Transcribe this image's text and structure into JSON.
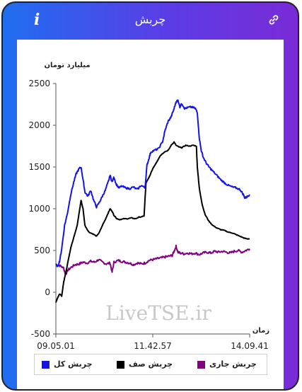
{
  "header": {
    "title": "چربش",
    "info_icon": "i",
    "link_icon": "link-icon"
  },
  "chart_data": {
    "type": "line",
    "ylabel": "میلیارد تومان",
    "xlabel": "زمان",
    "ylim": [
      -500,
      2500
    ],
    "yticks": [
      -500,
      0,
      500,
      1000,
      1500,
      2000,
      2500
    ],
    "xticks": [
      "09.05.01",
      "11.42.57",
      "14.09.41"
    ],
    "x_range": [
      "09.05.01",
      "14.09.41"
    ],
    "grid": false,
    "watermark": "LiveTSE.ir",
    "legend_placement": "bottom",
    "series": [
      {
        "name": "چربش کل",
        "color": "#1414e6",
        "values": [
          [
            0,
            330
          ],
          [
            0.01,
            310
          ],
          [
            0.02,
            380
          ],
          [
            0.03,
            520
          ],
          [
            0.045,
            800
          ],
          [
            0.06,
            950
          ],
          [
            0.075,
            1150
          ],
          [
            0.09,
            1300
          ],
          [
            0.105,
            1420
          ],
          [
            0.12,
            1480
          ],
          [
            0.13,
            1500
          ],
          [
            0.14,
            1350
          ],
          [
            0.15,
            1200
          ],
          [
            0.165,
            1150
          ],
          [
            0.18,
            1220
          ],
          [
            0.195,
            1100
          ],
          [
            0.21,
            1020
          ],
          [
            0.225,
            1080
          ],
          [
            0.24,
            1150
          ],
          [
            0.255,
            1220
          ],
          [
            0.27,
            1320
          ],
          [
            0.28,
            1400
          ],
          [
            0.29,
            1320
          ],
          [
            0.3,
            1380
          ],
          [
            0.31,
            1300
          ],
          [
            0.325,
            1250
          ],
          [
            0.34,
            1270
          ],
          [
            0.36,
            1250
          ],
          [
            0.38,
            1240
          ],
          [
            0.4,
            1260
          ],
          [
            0.42,
            1230
          ],
          [
            0.44,
            1280
          ],
          [
            0.46,
            1250
          ],
          [
            0.47,
            1520
          ],
          [
            0.48,
            1600
          ],
          [
            0.49,
            1680
          ],
          [
            0.51,
            1700
          ],
          [
            0.53,
            1720
          ],
          [
            0.55,
            1800
          ],
          [
            0.565,
            1950
          ],
          [
            0.58,
            2050
          ],
          [
            0.595,
            2100
          ],
          [
            0.61,
            2200
          ],
          [
            0.62,
            2280
          ],
          [
            0.63,
            2300
          ],
          [
            0.64,
            2220
          ],
          [
            0.65,
            2260
          ],
          [
            0.665,
            2200
          ],
          [
            0.68,
            2210
          ],
          [
            0.7,
            2220
          ],
          [
            0.72,
            2200
          ],
          [
            0.73,
            2150
          ],
          [
            0.74,
            1850
          ],
          [
            0.75,
            1700
          ],
          [
            0.76,
            1620
          ],
          [
            0.775,
            1550
          ],
          [
            0.79,
            1500
          ],
          [
            0.81,
            1450
          ],
          [
            0.83,
            1400
          ],
          [
            0.85,
            1350
          ],
          [
            0.87,
            1310
          ],
          [
            0.89,
            1280
          ],
          [
            0.91,
            1260
          ],
          [
            0.93,
            1250
          ],
          [
            0.95,
            1230
          ],
          [
            0.965,
            1180
          ],
          [
            0.975,
            1130
          ],
          [
            0.985,
            1140
          ],
          [
            1.0,
            1170
          ]
        ]
      },
      {
        "name": "چربش صف",
        "color": "#000000",
        "values": [
          [
            0,
            -120
          ],
          [
            0.01,
            -60
          ],
          [
            0.02,
            -20
          ],
          [
            0.03,
            -50
          ],
          [
            0.04,
            120
          ],
          [
            0.05,
            220
          ],
          [
            0.065,
            400
          ],
          [
            0.08,
            560
          ],
          [
            0.095,
            680
          ],
          [
            0.11,
            800
          ],
          [
            0.12,
            950
          ],
          [
            0.13,
            1100
          ],
          [
            0.14,
            1000
          ],
          [
            0.15,
            800
          ],
          [
            0.17,
            720
          ],
          [
            0.19,
            700
          ],
          [
            0.21,
            670
          ],
          [
            0.225,
            720
          ],
          [
            0.24,
            800
          ],
          [
            0.255,
            870
          ],
          [
            0.27,
            950
          ],
          [
            0.28,
            1000
          ],
          [
            0.29,
            970
          ],
          [
            0.3,
            920
          ],
          [
            0.315,
            880
          ],
          [
            0.33,
            870
          ],
          [
            0.35,
            880
          ],
          [
            0.37,
            880
          ],
          [
            0.39,
            890
          ],
          [
            0.41,
            880
          ],
          [
            0.43,
            900
          ],
          [
            0.455,
            910
          ],
          [
            0.465,
            1310
          ],
          [
            0.48,
            1370
          ],
          [
            0.5,
            1480
          ],
          [
            0.52,
            1560
          ],
          [
            0.54,
            1640
          ],
          [
            0.56,
            1680
          ],
          [
            0.58,
            1700
          ],
          [
            0.595,
            1760
          ],
          [
            0.61,
            1800
          ],
          [
            0.62,
            1760
          ],
          [
            0.635,
            1740
          ],
          [
            0.65,
            1730
          ],
          [
            0.67,
            1760
          ],
          [
            0.69,
            1750
          ],
          [
            0.71,
            1760
          ],
          [
            0.725,
            1750
          ],
          [
            0.73,
            1500
          ],
          [
            0.74,
            1250
          ],
          [
            0.755,
            1050
          ],
          [
            0.77,
            930
          ],
          [
            0.79,
            850
          ],
          [
            0.81,
            800
          ],
          [
            0.83,
            770
          ],
          [
            0.85,
            750
          ],
          [
            0.87,
            740
          ],
          [
            0.89,
            720
          ],
          [
            0.91,
            710
          ],
          [
            0.93,
            690
          ],
          [
            0.95,
            670
          ],
          [
            0.97,
            650
          ],
          [
            0.985,
            640
          ],
          [
            1.0,
            640
          ]
        ]
      },
      {
        "name": "چربش جاری",
        "color": "#800080",
        "values": [
          [
            0,
            330
          ],
          [
            0.02,
            320
          ],
          [
            0.04,
            290
          ],
          [
            0.05,
            210
          ],
          [
            0.06,
            260
          ],
          [
            0.08,
            300
          ],
          [
            0.1,
            330
          ],
          [
            0.12,
            340
          ],
          [
            0.14,
            360
          ],
          [
            0.16,
            350
          ],
          [
            0.18,
            370
          ],
          [
            0.2,
            360
          ],
          [
            0.22,
            390
          ],
          [
            0.24,
            360
          ],
          [
            0.26,
            340
          ],
          [
            0.28,
            350
          ],
          [
            0.29,
            240
          ],
          [
            0.3,
            360
          ],
          [
            0.32,
            380
          ],
          [
            0.34,
            370
          ],
          [
            0.36,
            360
          ],
          [
            0.38,
            350
          ],
          [
            0.4,
            330
          ],
          [
            0.42,
            350
          ],
          [
            0.44,
            340
          ],
          [
            0.46,
            350
          ],
          [
            0.48,
            380
          ],
          [
            0.5,
            390
          ],
          [
            0.52,
            400
          ],
          [
            0.54,
            410
          ],
          [
            0.56,
            420
          ],
          [
            0.58,
            430
          ],
          [
            0.6,
            440
          ],
          [
            0.61,
            490
          ],
          [
            0.62,
            550
          ],
          [
            0.63,
            480
          ],
          [
            0.64,
            470
          ],
          [
            0.66,
            460
          ],
          [
            0.68,
            470
          ],
          [
            0.7,
            460
          ],
          [
            0.72,
            470
          ],
          [
            0.74,
            450
          ],
          [
            0.76,
            470
          ],
          [
            0.78,
            480
          ],
          [
            0.8,
            470
          ],
          [
            0.82,
            490
          ],
          [
            0.84,
            480
          ],
          [
            0.86,
            490
          ],
          [
            0.88,
            480
          ],
          [
            0.9,
            470
          ],
          [
            0.92,
            490
          ],
          [
            0.94,
            500
          ],
          [
            0.96,
            480
          ],
          [
            0.98,
            500
          ],
          [
            1.0,
            520
          ]
        ]
      }
    ]
  }
}
